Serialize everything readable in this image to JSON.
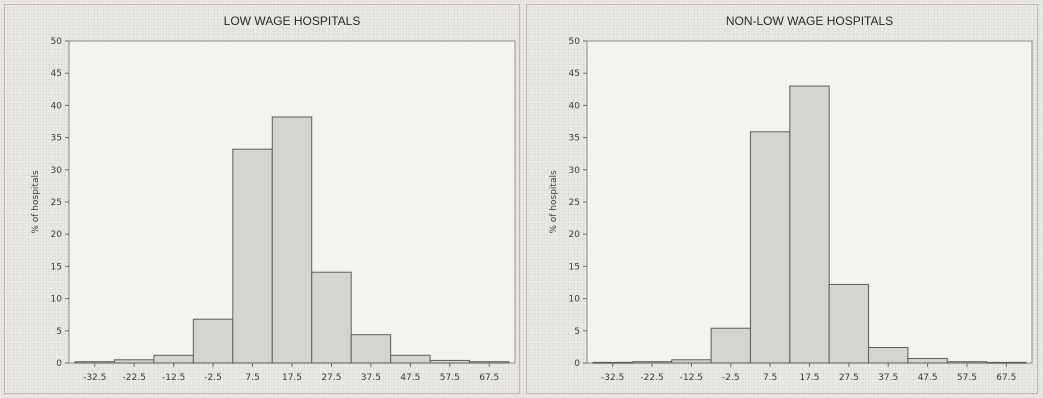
{
  "chart_data": [
    {
      "type": "bar",
      "title": "LOW WAGE HOSPITALS",
      "ylabel": "% of hospitals",
      "xlabel": "",
      "ylim": [
        0,
        50
      ],
      "yticks": [
        0,
        5,
        10,
        15,
        20,
        25,
        30,
        35,
        40,
        45,
        50
      ],
      "xticks": [
        "-32.5",
        "-22.5",
        "-12.5",
        "-2.5",
        "7.5",
        "17.5",
        "27.5",
        "37.5",
        "47.5",
        "57.5",
        "67.5"
      ],
      "categories": [
        "-32.5",
        "-22.5",
        "-12.5",
        "-2.5",
        "7.5",
        "17.5",
        "27.5",
        "37.5",
        "47.5",
        "57.5",
        "67.5"
      ],
      "values": [
        0.2,
        0.5,
        1.2,
        6.8,
        33.2,
        38.2,
        14.1,
        4.4,
        1.2,
        0.4,
        0.2
      ],
      "bar_color": "#d5d4d0"
    },
    {
      "type": "bar",
      "title": "NON-LOW WAGE HOSPITALS",
      "ylabel": "% of hospitals",
      "xlabel": "",
      "ylim": [
        0,
        50
      ],
      "yticks": [
        0,
        5,
        10,
        15,
        20,
        25,
        30,
        35,
        40,
        45,
        50
      ],
      "xticks": [
        "-32.5",
        "-22.5",
        "-12.5",
        "-2.5",
        "7.5",
        "17.5",
        "27.5",
        "37.5",
        "47.5",
        "57.5",
        "67.5"
      ],
      "categories": [
        "-32.5",
        "-22.5",
        "-12.5",
        "-2.5",
        "7.5",
        "17.5",
        "27.5",
        "37.5",
        "47.5",
        "57.5",
        "67.5"
      ],
      "values": [
        0.1,
        0.2,
        0.5,
        5.4,
        35.9,
        43.0,
        12.2,
        2.4,
        0.7,
        0.2,
        0.1
      ],
      "bar_color": "#d5d4d0"
    }
  ]
}
